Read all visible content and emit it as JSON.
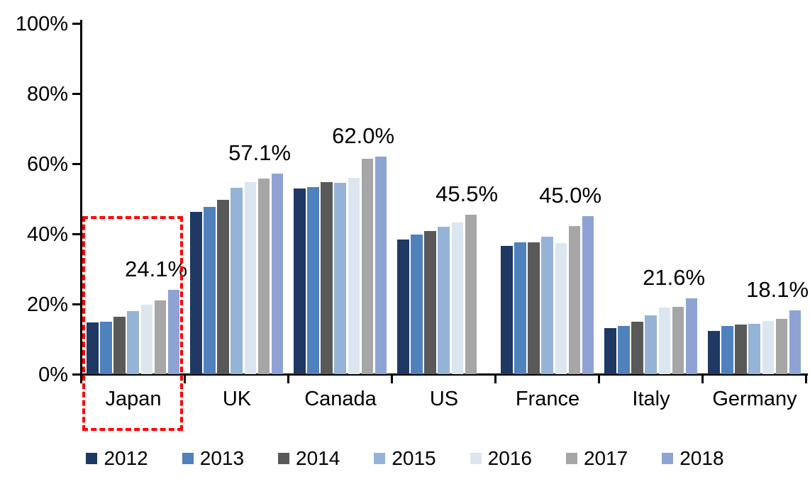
{
  "chart_data": {
    "type": "bar",
    "title": "",
    "xlabel": "",
    "ylabel": "",
    "unit": "%",
    "ylim": [
      0,
      100
    ],
    "ytick_labels": [
      "100%",
      "80%",
      "60%",
      "40%",
      "20%",
      "0%"
    ],
    "grid": "off",
    "legend_position": "bottom",
    "categories": [
      "Japan",
      "UK",
      "Canada",
      "US",
      "France",
      "Italy",
      "Germany"
    ],
    "series": [
      {
        "name": "2012",
        "color": "#1F3864",
        "values": [
          14.8,
          46.3,
          53.0,
          38.3,
          36.5,
          13.2,
          12.4
        ]
      },
      {
        "name": "2013",
        "color": "#4F81BD",
        "values": [
          15.0,
          47.7,
          53.3,
          39.8,
          37.6,
          13.8,
          13.7
        ]
      },
      {
        "name": "2014",
        "color": "#595959",
        "values": [
          16.4,
          49.7,
          54.8,
          40.8,
          37.5,
          15.0,
          14.1
        ]
      },
      {
        "name": "2015",
        "color": "#95B3D7",
        "values": [
          18.0,
          53.2,
          54.5,
          42.0,
          39.2,
          16.7,
          14.4
        ]
      },
      {
        "name": "2016",
        "color": "#DCE6F1",
        "values": [
          19.8,
          54.7,
          56.0,
          43.3,
          37.3,
          19.0,
          15.2
        ]
      },
      {
        "name": "2017",
        "color": "#A6A6A6",
        "values": [
          21.0,
          55.7,
          61.5,
          45.5,
          42.3,
          19.2,
          15.7
        ]
      },
      {
        "name": "2018",
        "color": "#8EA3D4",
        "values": [
          24.1,
          57.1,
          62.0,
          null,
          45.0,
          21.6,
          18.1
        ]
      }
    ],
    "data_labels": [
      "24.1%",
      "57.1%",
      "62.0%",
      "45.5%",
      "45.0%",
      "21.6%",
      "18.1%"
    ],
    "annotations": {
      "highlight_box": {
        "target_category": "Japan",
        "color": "#FF0000",
        "style": "dashed"
      }
    }
  }
}
